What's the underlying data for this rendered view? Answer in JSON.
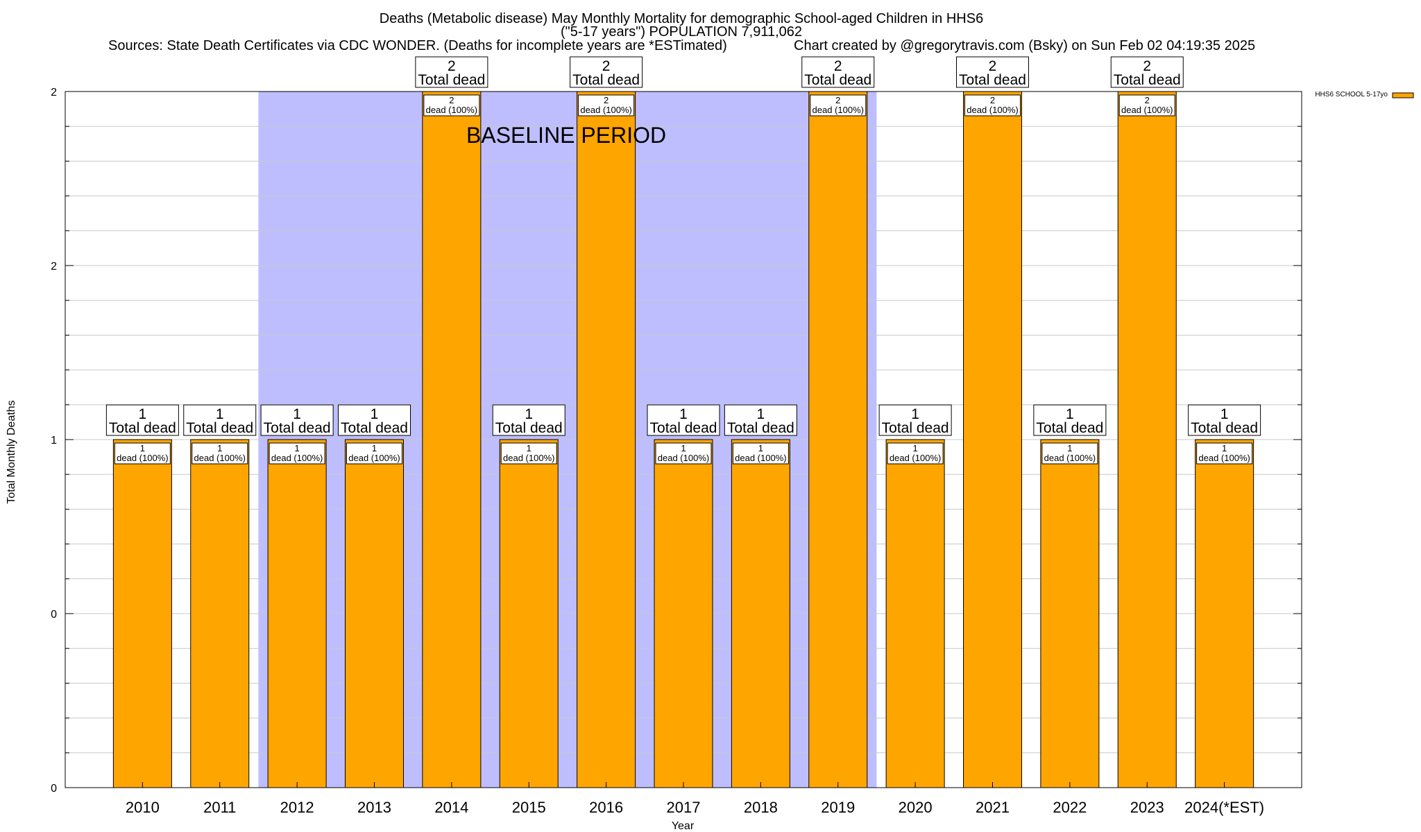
{
  "chart_data": {
    "type": "bar",
    "title_lines": [
      "Deaths (Metabolic disease) May Monthly Mortality for demographic School-aged Children in HHS6",
      "(\"5-17 years\") POPULATION 7,911,062"
    ],
    "sources": "Sources: State Death Certificates via CDC WONDER. (Deaths for incomplete years are *ESTimated)",
    "credit": "Chart created by @gregorytravis.com (Bsky) on Sun Feb 02 04:19:35 2025",
    "xlabel": "Year",
    "ylabel": "Total Monthly Deaths",
    "categories": [
      "2010",
      "2011",
      "2012",
      "2013",
      "2014",
      "2015",
      "2016",
      "2017",
      "2018",
      "2019",
      "2020",
      "2021",
      "2022",
      "2023",
      "2024(*EST)"
    ],
    "series": [
      {
        "name": "HHS6 SCHOOL 5-17yo",
        "color": "#FFA500",
        "values": [
          1,
          1,
          1,
          1,
          2,
          1,
          2,
          1,
          1,
          2,
          1,
          2,
          1,
          2,
          1
        ]
      }
    ],
    "total_label_suffix": "Total dead",
    "inner_label_suffix": "dead (100%)",
    "ylim": [
      0,
      2
    ],
    "y_tick_labels": [
      "0",
      "0",
      "1",
      "2",
      "2"
    ],
    "y_tick_values": [
      0,
      0.5,
      1,
      1.5,
      2
    ],
    "y_minor_step": 0.1,
    "baseline_band": {
      "label": "BASELINE PERIOD",
      "from_category": "2012",
      "to_category": "2019",
      "color": "#BEBEFF"
    },
    "grid": true,
    "legend_position": "top-right"
  }
}
